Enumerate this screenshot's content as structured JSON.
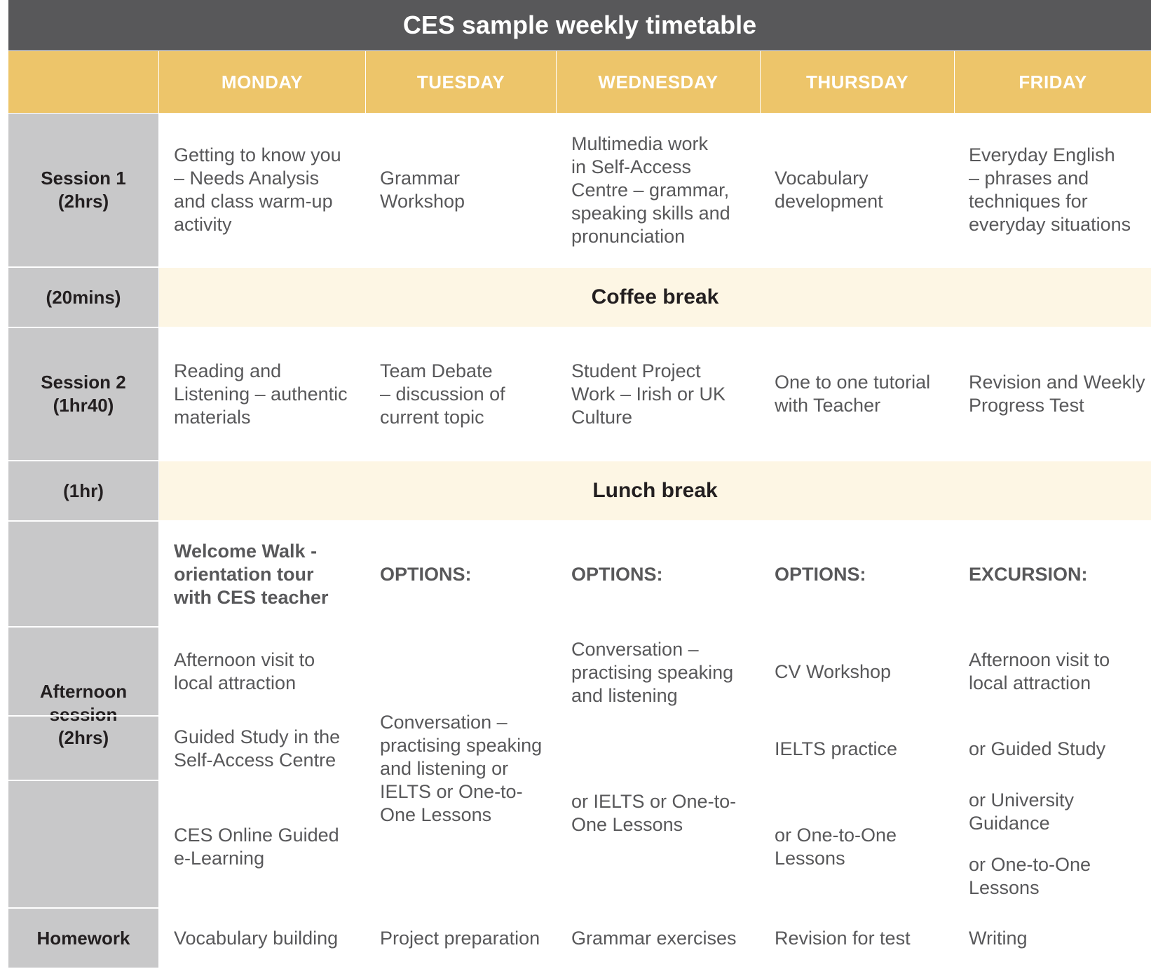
{
  "title": "CES sample weekly timetable",
  "days": [
    "MONDAY",
    "TUESDAY",
    "WEDNESDAY",
    "THURSDAY",
    "FRIDAY"
  ],
  "rows": {
    "session1": {
      "label": [
        "Session 1",
        "(2hrs)"
      ],
      "cells": [
        [
          "Getting to know you",
          "– Needs Analysis",
          "and class warm-up",
          "activity"
        ],
        [
          "Grammar",
          "Workshop"
        ],
        [
          "Multimedia work",
          "in Self-Access",
          "Centre – grammar,",
          "speaking skills and",
          "pronunciation"
        ],
        [
          "Vocabulary",
          "development"
        ],
        [
          "Everyday English",
          "– phrases and",
          "techniques for",
          "everyday situations"
        ]
      ]
    },
    "coffee": {
      "label": [
        "(20mins)"
      ],
      "text": "Coffee break"
    },
    "session2": {
      "label": [
        "Session 2",
        "(1hr40)"
      ],
      "cells": [
        [
          "Reading and",
          "Listening – authentic",
          "materials"
        ],
        [
          "Team Debate",
          "– discussion of",
          "current topic"
        ],
        [
          "Student Project",
          "Work – Irish or UK",
          "Culture"
        ],
        [
          "One to one tutorial",
          "with Teacher"
        ],
        [
          "Revision and Weekly",
          "Progress Test"
        ]
      ]
    },
    "lunch": {
      "label": [
        "(1hr)"
      ],
      "text": "Lunch break"
    },
    "afternoon": {
      "label": [
        "Afternoon",
        "session",
        "(2hrs)"
      ],
      "headers": [
        [
          "Welcome Walk -",
          "orientation tour",
          "with CES teacher"
        ],
        [
          "OPTIONS:"
        ],
        [
          "OPTIONS:"
        ],
        [
          "OPTIONS:"
        ],
        [
          "EXCURSION:"
        ]
      ],
      "monday": [
        [
          "Afternoon visit to",
          "local attraction"
        ],
        [
          "Guided Study in the",
          "Self-Access Centre"
        ],
        [
          "CES Online Guided",
          "e-Learning"
        ]
      ],
      "tuesday": [
        [
          "Conversation –",
          "practising speaking",
          "and listening or",
          "IELTS or One-to-",
          "One Lessons"
        ]
      ],
      "wednesday": [
        [
          "Conversation –",
          "practising speaking",
          "and listening"
        ],
        [
          "or IELTS or One-to-",
          "One Lessons"
        ]
      ],
      "thursday": [
        [
          "CV Workshop"
        ],
        [
          "IELTS practice"
        ],
        [
          "or One-to-One",
          "Lessons"
        ]
      ],
      "friday": [
        [
          "Afternoon visit to",
          "local attraction"
        ],
        [
          "or Guided Study"
        ],
        [
          "or University",
          "Guidance"
        ],
        [
          "or One-to-One",
          "Lessons"
        ]
      ]
    },
    "homework": {
      "label": [
        "Homework"
      ],
      "cells": [
        "Vocabulary building",
        "Project preparation",
        "Grammar exercises",
        "Revision for test",
        "Writing"
      ]
    }
  }
}
